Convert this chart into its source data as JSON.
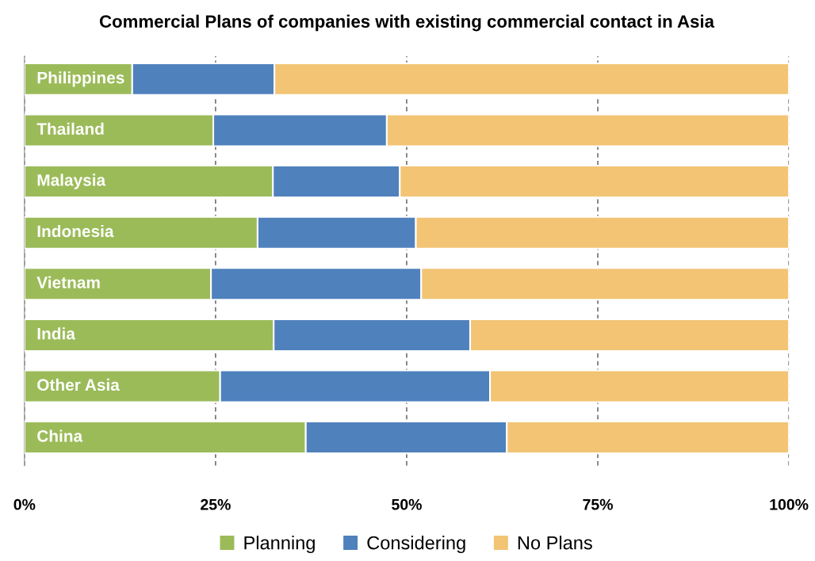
{
  "chart_data": {
    "type": "bar",
    "orientation": "horizontal",
    "stacked": true,
    "title": "Commercial Plans of companies with existing commercial contact in Asia",
    "categories": [
      "Philippines",
      "Thailand",
      "Malaysia",
      "Indonesia",
      "Vietnam",
      "India",
      "Other Asia",
      "China"
    ],
    "series": [
      {
        "name": "Planning",
        "color": "#9bbb59",
        "values": [
          14.1,
          24.7,
          32.5,
          30.5,
          24.4,
          32.6,
          25.6,
          36.8
        ]
      },
      {
        "name": "Considering",
        "color": "#4f81bd",
        "values": [
          18.6,
          22.7,
          16.6,
          20.7,
          27.5,
          25.7,
          35.3,
          26.3
        ]
      },
      {
        "name": "No Plans",
        "color": "#f2c474",
        "values": [
          67.3,
          52.6,
          50.9,
          48.8,
          48.1,
          41.7,
          39.1,
          36.9
        ]
      }
    ],
    "xlim": [
      0,
      100
    ],
    "xticks": [
      {
        "value": 0,
        "label": "0%"
      },
      {
        "value": 25,
        "label": "25%"
      },
      {
        "value": 50,
        "label": "50%"
      },
      {
        "value": 75,
        "label": "75%"
      },
      {
        "value": 100,
        "label": "100%"
      }
    ],
    "grid": "x",
    "legend": "bottom"
  }
}
